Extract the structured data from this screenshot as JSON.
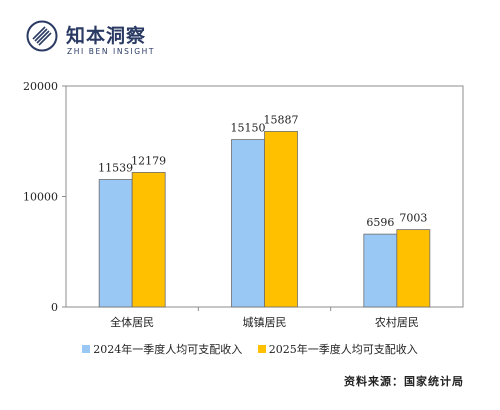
{
  "brand": {
    "name": "知本洞察",
    "subtitle": "ZHI BEN INSIGHT",
    "color": "#2a3a63"
  },
  "chart_data": {
    "type": "bar",
    "categories": [
      "全体居民",
      "城镇居民",
      "农村居民"
    ],
    "series": [
      {
        "name": "2024年一季度人均可支配收入",
        "values": [
          11539,
          15150,
          6596
        ],
        "color": "#99c8f5"
      },
      {
        "name": "2025年一季度人均可支配收入",
        "values": [
          12179,
          15887,
          7003
        ],
        "color": "#ffc000"
      }
    ],
    "ylim": [
      0,
      20000
    ],
    "yticks": [
      "0",
      "10000",
      "20000"
    ],
    "grid": false,
    "legend_position": "bottom"
  },
  "source_note": "资料来源：国家统计局"
}
